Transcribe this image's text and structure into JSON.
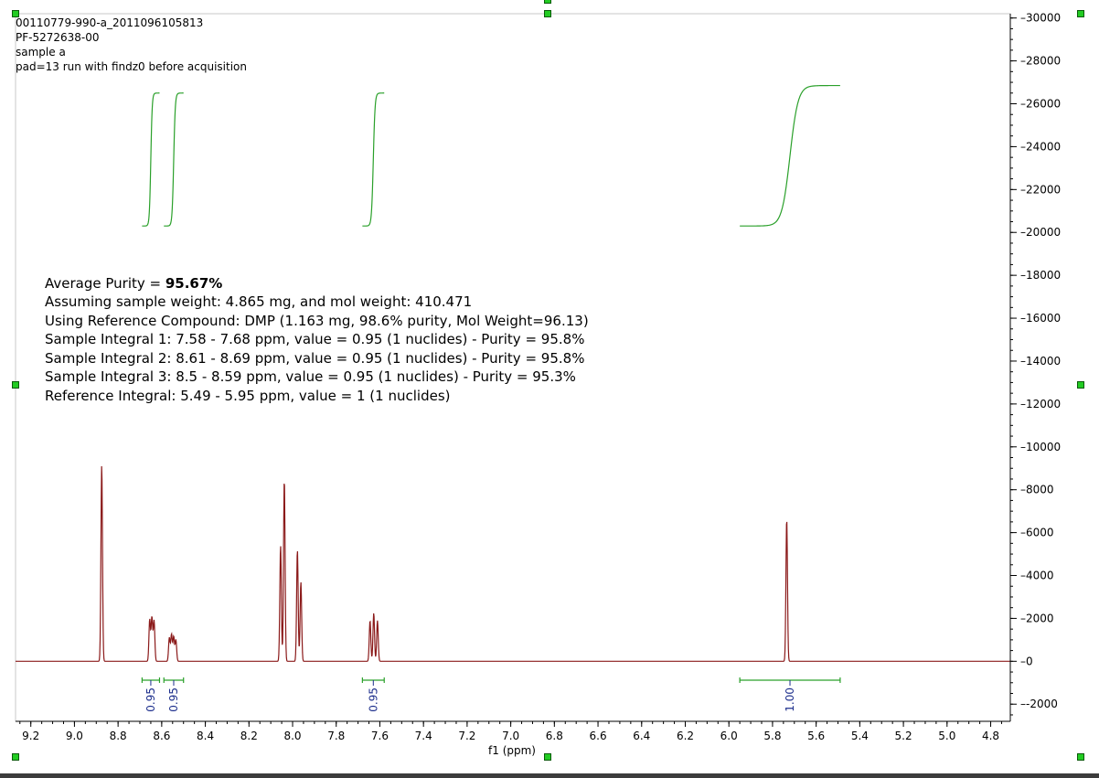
{
  "header": {
    "line1": "00110779-990-a_2011096105813",
    "line2": "PF-5272638-00",
    "line3": "sample a",
    "line4": "pad=13 run with findz0 before acquisition"
  },
  "summary": {
    "purity_label": "Average Purity = ",
    "purity_value": "95.67%",
    "line_weight": "Assuming sample weight: 4.865 mg, and mol weight: 410.471",
    "line_reference": "Using Reference Compound: DMP (1.163 mg, 98.6% purity, Mol Weight=96.13)",
    "line_int1": "Sample Integral 1: 7.58 - 7.68 ppm, value = 0.95 (1 nuclides) - Purity = 95.8%",
    "line_int2": "Sample Integral 2: 8.61 - 8.69 ppm, value = 0.95 (1 nuclides) - Purity = 95.8%",
    "line_int3": "Sample Integral 3: 8.5 - 8.59 ppm, value = 0.95 (1 nuclides) - Purity = 95.3%",
    "line_ref_int": "Reference Integral: 5.49 - 5.95 ppm, value = 1 (1 nuclides)"
  },
  "chart_data": {
    "type": "line",
    "xlabel": "f1 (ppm)",
    "ylabel": "",
    "xlim": [
      9.27,
      4.71
    ],
    "ylim": [
      -2800,
      30200
    ],
    "x_ticks": [
      "9.2",
      "9.0",
      "8.8",
      "8.6",
      "8.4",
      "8.2",
      "8.0",
      "7.8",
      "7.6",
      "7.4",
      "7.2",
      "7.0",
      "6.8",
      "6.6",
      "6.4",
      "6.2",
      "6.0",
      "5.8",
      "5.6",
      "5.4",
      "5.2",
      "5.0",
      "4.8"
    ],
    "y_ticks": [
      "-2000",
      "0",
      "2000",
      "4000",
      "6000",
      "8000",
      "10000",
      "12000",
      "14000",
      "16000",
      "18000",
      "20000",
      "22000",
      "24000",
      "26000",
      "28000",
      "30000"
    ],
    "spectrum_color": "#8b1a1a",
    "integral_color": "#2aa02a",
    "peaks": [
      {
        "ppm": 8.875,
        "height": 9150
      },
      {
        "ppm": 8.655,
        "height": 1950
      },
      {
        "ppm": 8.645,
        "height": 2050
      },
      {
        "ppm": 8.635,
        "height": 1900
      },
      {
        "ppm": 8.565,
        "height": 1100
      },
      {
        "ppm": 8.555,
        "height": 1250
      },
      {
        "ppm": 8.545,
        "height": 1150
      },
      {
        "ppm": 8.535,
        "height": 1000
      },
      {
        "ppm": 8.055,
        "height": 5400
      },
      {
        "ppm": 8.038,
        "height": 8500
      },
      {
        "ppm": 7.978,
        "height": 5200
      },
      {
        "ppm": 7.962,
        "height": 3700
      },
      {
        "ppm": 7.645,
        "height": 1900
      },
      {
        "ppm": 7.628,
        "height": 2250
      },
      {
        "ppm": 7.611,
        "height": 1900
      },
      {
        "ppm": 5.735,
        "height": 6650
      }
    ],
    "integral_curves": [
      {
        "from": 8.69,
        "to": 8.61,
        "y_start": 20300,
        "y_end": 26500
      },
      {
        "from": 8.59,
        "to": 8.5,
        "y_start": 20300,
        "y_end": 26500
      },
      {
        "from": 7.68,
        "to": 7.58,
        "y_start": 20300,
        "y_end": 26500
      },
      {
        "from": 5.95,
        "to": 5.49,
        "y_start": 20300,
        "y_end": 26850
      }
    ],
    "integrals": [
      {
        "from": 8.69,
        "to": 8.61,
        "label": "0.95"
      },
      {
        "from": 8.59,
        "to": 8.5,
        "label": "0.95"
      },
      {
        "from": 7.68,
        "to": 7.58,
        "label": "0.95"
      },
      {
        "from": 5.95,
        "to": 5.49,
        "label": "1.00"
      }
    ]
  }
}
